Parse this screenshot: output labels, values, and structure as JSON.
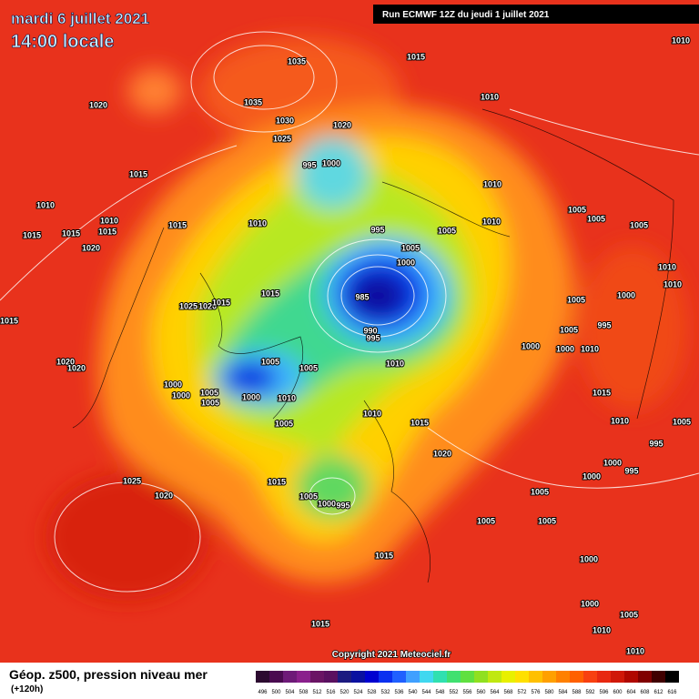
{
  "header": {
    "date": "mardi 6 juillet 2021",
    "time": "14:00 locale",
    "run": "Run ECMWF 12Z du jeudi 1 juillet 2021"
  },
  "copyright": "Copyright 2021 Meteociel.fr",
  "legend": {
    "title": "Géop. z500, pression niveau mer",
    "subtitle": "(+120h)",
    "levels": [
      496,
      500,
      504,
      508,
      512,
      516,
      520,
      524,
      528,
      532,
      536,
      540,
      544,
      548,
      552,
      556,
      560,
      564,
      568,
      572,
      576,
      580,
      584,
      588,
      592,
      596,
      600,
      604,
      608,
      612,
      616
    ],
    "colors": [
      "#2c0a30",
      "#4a0a50",
      "#6e1a78",
      "#8a208c",
      "#6a1464",
      "#5a1060",
      "#1c1a80",
      "#0a10a0",
      "#0000d0",
      "#0a30f0",
      "#2060ff",
      "#40a0ff",
      "#40d8f0",
      "#30e0b0",
      "#40e070",
      "#60e040",
      "#90e020",
      "#c0e810",
      "#e8f000",
      "#ffe000",
      "#ffc000",
      "#ffa000",
      "#ff8000",
      "#ff6000",
      "#f84010",
      "#e82810",
      "#d01808",
      "#b00800",
      "#800000",
      "#400000",
      "#000000"
    ]
  },
  "isobars": [
    1035,
    1035,
    1020,
    1015,
    1010,
    1010,
    1030,
    1020,
    1025,
    995,
    1000,
    1015,
    1010,
    1010,
    1010,
    1015,
    1015,
    1015,
    1020,
    1015,
    1010,
    995,
    1005,
    1005,
    1005,
    1005,
    1010,
    1005,
    1000,
    985,
    990,
    995,
    1015,
    1025,
    1020,
    1015,
    1015,
    1005,
    1005,
    1000,
    1000,
    1010,
    1010,
    1020,
    1020,
    1005,
    1005,
    1000,
    1000,
    1005,
    1005,
    1000,
    1010,
    1010,
    1005,
    1015,
    1020,
    1025,
    1020,
    1015,
    1005,
    1000,
    995,
    1015,
    1005,
    1005,
    1005,
    1000,
    1015,
    1000,
    1005,
    1010,
    1010,
    995,
    1005,
    1000,
    1000,
    995,
    1010,
    1015,
    1010,
    1010,
    1000,
    995
  ]
}
